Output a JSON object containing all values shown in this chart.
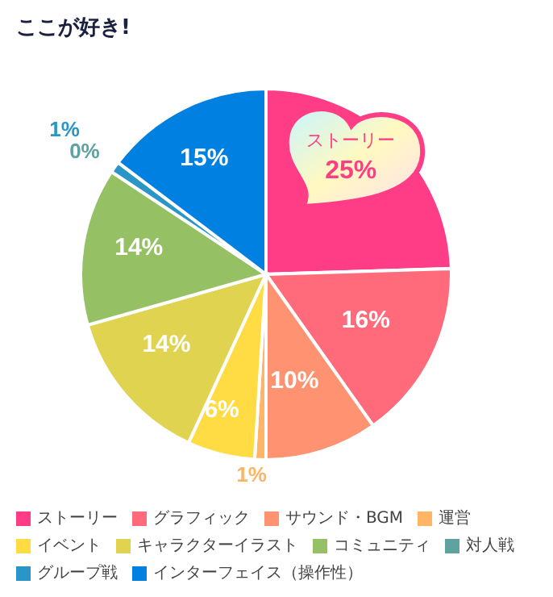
{
  "chart_data": {
    "type": "pie",
    "title": "ここが好き!",
    "categories": [
      "ストーリー",
      "グラフィック",
      "サウンド・BGM",
      "運営",
      "イベント",
      "キャラクターイラスト",
      "コミュニティ",
      "対人戦",
      "グループ戦",
      "インターフェイス（操作性）"
    ],
    "values": [
      25,
      16,
      10,
      1,
      6,
      14,
      14,
      0,
      1,
      15
    ],
    "value_labels": [
      "25%",
      "16%",
      "10%",
      "1%",
      "6%",
      "14%",
      "14%",
      "0%",
      "1%",
      "15%"
    ],
    "colors": [
      "#ff3d87",
      "#ff6b7a",
      "#ff9270",
      "#ffb466",
      "#ffdc44",
      "#e0d350",
      "#96c064",
      "#5fa3a0",
      "#2a96c8",
      "#0080e0"
    ],
    "legend": "bottom"
  }
}
